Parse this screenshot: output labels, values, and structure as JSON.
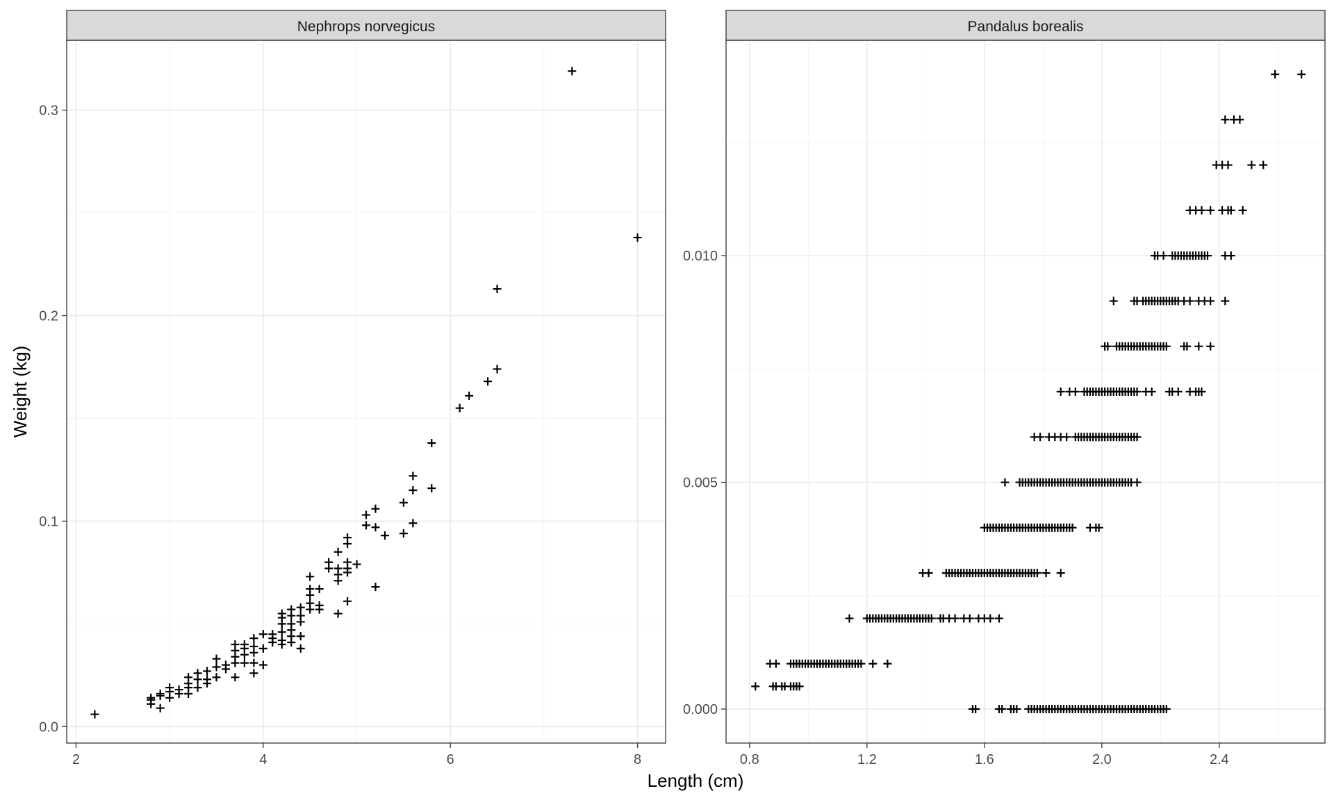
{
  "chart_data": {
    "type": "scatter",
    "xlabel": "Length (cm)",
    "ylabel": "Weight (kg)",
    "marker": "plus",
    "grid": true,
    "facets": [
      {
        "title": "Nephrops norvegicus",
        "xlim": [
          1.9,
          8.3
        ],
        "ylim": [
          -0.008,
          0.334
        ],
        "x_ticks": [
          2,
          4,
          6,
          8
        ],
        "x_tick_labels": [
          "2",
          "4",
          "6",
          "8"
        ],
        "y_ticks": [
          0.0,
          0.1,
          0.2,
          0.3
        ],
        "y_tick_labels": [
          "0.0",
          "0.1",
          "0.2",
          "0.3"
        ],
        "points": [
          [
            2.2,
            0.006
          ],
          [
            2.8,
            0.011
          ],
          [
            2.8,
            0.013
          ],
          [
            2.8,
            0.014
          ],
          [
            2.9,
            0.009
          ],
          [
            2.9,
            0.015
          ],
          [
            2.9,
            0.016
          ],
          [
            3.0,
            0.014
          ],
          [
            3.0,
            0.017
          ],
          [
            3.0,
            0.019
          ],
          [
            3.1,
            0.016
          ],
          [
            3.1,
            0.018
          ],
          [
            3.2,
            0.016
          ],
          [
            3.2,
            0.019
          ],
          [
            3.2,
            0.021
          ],
          [
            3.2,
            0.024
          ],
          [
            3.3,
            0.019
          ],
          [
            3.3,
            0.023
          ],
          [
            3.3,
            0.026
          ],
          [
            3.4,
            0.021
          ],
          [
            3.4,
            0.023
          ],
          [
            3.4,
            0.027
          ],
          [
            3.5,
            0.024
          ],
          [
            3.5,
            0.029
          ],
          [
            3.5,
            0.033
          ],
          [
            3.6,
            0.028
          ],
          [
            3.6,
            0.03
          ],
          [
            3.7,
            0.024
          ],
          [
            3.7,
            0.031
          ],
          [
            3.7,
            0.034
          ],
          [
            3.7,
            0.037
          ],
          [
            3.7,
            0.04
          ],
          [
            3.8,
            0.031
          ],
          [
            3.8,
            0.035
          ],
          [
            3.8,
            0.038
          ],
          [
            3.8,
            0.04
          ],
          [
            3.9,
            0.026
          ],
          [
            3.9,
            0.031
          ],
          [
            3.9,
            0.036
          ],
          [
            3.9,
            0.039
          ],
          [
            3.9,
            0.043
          ],
          [
            4.0,
            0.03
          ],
          [
            4.0,
            0.038
          ],
          [
            4.0,
            0.045
          ],
          [
            4.1,
            0.041
          ],
          [
            4.1,
            0.043
          ],
          [
            4.1,
            0.045
          ],
          [
            4.2,
            0.04
          ],
          [
            4.2,
            0.042
          ],
          [
            4.2,
            0.046
          ],
          [
            4.2,
            0.05
          ],
          [
            4.2,
            0.053
          ],
          [
            4.2,
            0.055
          ],
          [
            4.3,
            0.041
          ],
          [
            4.3,
            0.044
          ],
          [
            4.3,
            0.047
          ],
          [
            4.3,
            0.05
          ],
          [
            4.3,
            0.054
          ],
          [
            4.3,
            0.057
          ],
          [
            4.4,
            0.038
          ],
          [
            4.4,
            0.044
          ],
          [
            4.4,
            0.051
          ],
          [
            4.4,
            0.054
          ],
          [
            4.4,
            0.058
          ],
          [
            4.5,
            0.057
          ],
          [
            4.5,
            0.06
          ],
          [
            4.5,
            0.064
          ],
          [
            4.5,
            0.067
          ],
          [
            4.5,
            0.073
          ],
          [
            4.6,
            0.057
          ],
          [
            4.6,
            0.059
          ],
          [
            4.6,
            0.067
          ],
          [
            4.7,
            0.077
          ],
          [
            4.7,
            0.08
          ],
          [
            4.8,
            0.055
          ],
          [
            4.8,
            0.071
          ],
          [
            4.8,
            0.074
          ],
          [
            4.8,
            0.077
          ],
          [
            4.8,
            0.085
          ],
          [
            4.9,
            0.061
          ],
          [
            4.9,
            0.075
          ],
          [
            4.9,
            0.077
          ],
          [
            4.9,
            0.08
          ],
          [
            4.9,
            0.089
          ],
          [
            4.9,
            0.092
          ],
          [
            5.0,
            0.079
          ],
          [
            5.1,
            0.098
          ],
          [
            5.1,
            0.103
          ],
          [
            5.2,
            0.068
          ],
          [
            5.2,
            0.097
          ],
          [
            5.2,
            0.106
          ],
          [
            5.3,
            0.093
          ],
          [
            5.5,
            0.094
          ],
          [
            5.5,
            0.109
          ],
          [
            5.6,
            0.099
          ],
          [
            5.6,
            0.115
          ],
          [
            5.6,
            0.122
          ],
          [
            5.8,
            0.116
          ],
          [
            5.8,
            0.138
          ],
          [
            6.1,
            0.155
          ],
          [
            6.2,
            0.161
          ],
          [
            6.4,
            0.168
          ],
          [
            6.5,
            0.174
          ],
          [
            6.5,
            0.213
          ],
          [
            7.3,
            0.319
          ],
          [
            8.0,
            0.238
          ]
        ]
      },
      {
        "title": "Pandalus borealis",
        "xlim": [
          0.72,
          2.76
        ],
        "ylim": [
          -0.00075,
          0.01475
        ],
        "x_ticks": [
          0.8,
          1.2,
          1.6,
          2.0,
          2.4
        ],
        "x_tick_labels": [
          "0.8",
          "1.2",
          "1.6",
          "2.0",
          "2.4"
        ],
        "y_ticks": [
          0.0,
          0.005,
          0.01
        ],
        "y_tick_labels": [
          "0.000",
          "0.005",
          "0.010"
        ],
        "rows": [
          {
            "y": 0.0,
            "x_from": 1.75,
            "x_to": 2.22,
            "x_step": 0.01,
            "extra_x": [
              1.56,
              1.57,
              1.65,
              1.66,
              1.69,
              1.7,
              1.71
            ]
          },
          {
            "y": 0.0005,
            "x": [
              0.82,
              0.88,
              0.89,
              0.91,
              0.92,
              0.94,
              0.95,
              0.96,
              0.97
            ]
          },
          {
            "y": 0.001,
            "x_from": 0.94,
            "x_to": 1.18,
            "x_step": 0.01,
            "extra_x": [
              0.87,
              0.89,
              1.22,
              1.27
            ]
          },
          {
            "y": 0.002,
            "x_from": 1.2,
            "x_to": 1.42,
            "x_step": 0.01,
            "extra_x": [
              1.14,
              1.45,
              1.46,
              1.48,
              1.5,
              1.53,
              1.55,
              1.58,
              1.6,
              1.62,
              1.65
            ]
          },
          {
            "y": 0.003,
            "x_from": 1.47,
            "x_to": 1.78,
            "x_step": 0.01,
            "extra_x": [
              1.39,
              1.41,
              1.81,
              1.86
            ]
          },
          {
            "y": 0.004,
            "x_from": 1.6,
            "x_to": 1.9,
            "x_step": 0.01,
            "extra_x": [
              1.96,
              1.98,
              1.99
            ]
          },
          {
            "y": 0.005,
            "x_from": 1.72,
            "x_to": 2.1,
            "x_step": 0.01,
            "extra_x": [
              1.67,
              2.12
            ]
          },
          {
            "y": 0.006,
            "x_from": 1.91,
            "x_to": 2.12,
            "x_step": 0.01,
            "extra_x": [
              1.77,
              1.79,
              1.82,
              1.84,
              1.86,
              1.88
            ]
          },
          {
            "y": 0.007,
            "x_from": 1.94,
            "x_to": 2.12,
            "x_step": 0.01,
            "extra_x": [
              1.86,
              1.89,
              1.91,
              2.15,
              2.17,
              2.23,
              2.24,
              2.26,
              2.3,
              2.32,
              2.33,
              2.34
            ]
          },
          {
            "y": 0.008,
            "x_from": 2.05,
            "x_to": 2.22,
            "x_step": 0.01,
            "extra_x": [
              2.01,
              2.02,
              2.28,
              2.29,
              2.33,
              2.37
            ]
          },
          {
            "y": 0.009,
            "x_from": 2.14,
            "x_to": 2.26,
            "x_step": 0.01,
            "extra_x": [
              2.04,
              2.11,
              2.12,
              2.28,
              2.3,
              2.33,
              2.35,
              2.37,
              2.42
            ]
          },
          {
            "y": 0.01,
            "x_from": 2.24,
            "x_to": 2.36,
            "x_step": 0.01,
            "extra_x": [
              2.18,
              2.19,
              2.21,
              2.42,
              2.44
            ]
          },
          {
            "y": 0.011,
            "x": [
              2.3,
              2.32,
              2.34,
              2.37,
              2.41,
              2.43,
              2.44,
              2.48
            ]
          },
          {
            "y": 0.012,
            "x": [
              2.39,
              2.41,
              2.43,
              2.51,
              2.55
            ]
          },
          {
            "y": 0.013,
            "x": [
              2.42,
              2.45,
              2.47
            ]
          },
          {
            "y": 0.014,
            "x": [
              2.59,
              2.68
            ]
          }
        ]
      }
    ]
  }
}
